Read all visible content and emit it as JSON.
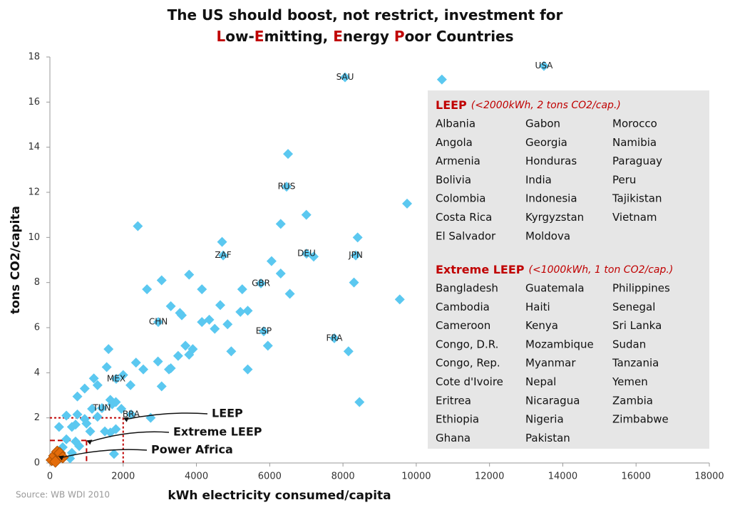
{
  "chart_data": {
    "type": "scatter",
    "title_lines": [
      [
        {
          "text": "The US should boost, not restrict, investment for",
          "color": "#111111"
        }
      ],
      [
        {
          "text": "L",
          "color": "#c00000"
        },
        {
          "text": "ow-",
          "color": "#111111"
        },
        {
          "text": "E",
          "color": "#c00000"
        },
        {
          "text": "mitting, ",
          "color": "#111111"
        },
        {
          "text": "E",
          "color": "#c00000"
        },
        {
          "text": "nergy ",
          "color": "#111111"
        },
        {
          "text": "P",
          "color": "#c00000"
        },
        {
          "text": "oor Countries",
          "color": "#111111"
        }
      ]
    ],
    "xlabel": "kWh electricity consumed/capita",
    "ylabel": "tons CO2/capita",
    "source": "Source: WB WDI 2010",
    "xlim": [
      0,
      18000
    ],
    "ylim": [
      0,
      18
    ],
    "xticks": [
      0,
      2000,
      4000,
      6000,
      8000,
      10000,
      12000,
      14000,
      16000,
      18000
    ],
    "yticks": [
      0,
      2,
      4,
      6,
      8,
      10,
      12,
      14,
      16,
      18
    ],
    "grid": false,
    "series": [
      {
        "color": "#5bc8f0",
        "x": [
          13485,
          8056,
          6460,
          4729,
          7005,
          8348,
          5760,
          2958,
          5837,
          7764,
          1810,
          1420,
          2218,
          10700,
          6500,
          9750,
          7000,
          2400,
          6300,
          8400,
          4700,
          7200,
          6050,
          3800,
          6300,
          3050,
          8300,
          2650,
          4150,
          5250,
          6550,
          9550,
          3300,
          4650,
          3550,
          3600,
          5200,
          5400,
          4150,
          4350,
          4500,
          4850,
          1600,
          3700,
          5950,
          3900,
          8150,
          4950,
          3500,
          3800,
          2350,
          2950,
          1550,
          3300,
          5400,
          3250,
          2550,
          1200,
          2000,
          2200,
          3050,
          950,
          1300,
          750,
          1650,
          1800,
          8450,
          1700,
          1150,
          750,
          1300,
          450,
          1950,
          2750,
          950,
          1000,
          250,
          600,
          700,
          1500,
          1650,
          1800,
          1100,
          450,
          700,
          800,
          350,
          1750,
          600,
          550
        ],
        "values": [
          17.6,
          17.1,
          12.25,
          9.2,
          9.28,
          9.2,
          7.96,
          6.25,
          5.84,
          5.53,
          3.73,
          2.43,
          2.15,
          17.0,
          13.7,
          11.5,
          11.0,
          10.5,
          10.6,
          10.0,
          9.8,
          9.15,
          8.95,
          8.35,
          8.4,
          8.1,
          8.0,
          7.7,
          7.7,
          7.7,
          7.5,
          7.25,
          6.95,
          7.0,
          6.65,
          6.55,
          6.7,
          6.75,
          6.25,
          6.35,
          5.95,
          6.15,
          5.05,
          5.2,
          5.2,
          5.05,
          4.95,
          4.95,
          4.75,
          4.8,
          4.45,
          4.5,
          4.25,
          4.2,
          4.15,
          4.15,
          4.15,
          3.75,
          3.9,
          3.45,
          3.4,
          3.3,
          3.45,
          2.95,
          2.8,
          2.7,
          2.7,
          2.6,
          2.4,
          2.15,
          2.05,
          2.1,
          2.4,
          2.0,
          1.95,
          1.75,
          1.6,
          1.6,
          1.7,
          1.4,
          1.35,
          1.5,
          1.4,
          1.05,
          0.95,
          0.75,
          0.7,
          0.4,
          0.45,
          0.2
        ],
        "labels": [
          "USA",
          "SAU",
          "RUS",
          "ZAF",
          "DEU",
          "JPN",
          "GBR",
          "CHN",
          "ESP",
          "FRA",
          "MEX",
          "TUN",
          "BRA",
          null,
          null,
          null,
          null,
          null,
          null,
          null,
          null,
          null,
          null,
          null,
          null,
          null,
          null,
          null,
          null,
          null,
          null,
          null,
          null,
          null,
          null,
          null,
          null,
          null,
          null,
          null,
          null,
          null,
          null,
          null,
          null,
          null,
          null,
          null,
          null,
          null,
          null,
          null,
          null,
          null,
          null,
          null,
          null,
          null,
          null,
          null,
          null,
          null,
          null,
          null,
          null,
          null,
          null,
          null,
          null,
          null,
          null,
          null,
          null,
          null,
          null,
          null,
          null,
          null,
          null,
          null,
          null,
          null,
          null,
          null,
          null,
          null,
          null,
          null,
          null,
          null
        ]
      },
      {
        "color": "#e46c0a",
        "x": [
          50,
          120,
          200,
          270,
          350,
          150
        ],
        "values": [
          0.13,
          0.32,
          0.5,
          0.44,
          0.25,
          0.06
        ],
        "labels": [
          null,
          null,
          null,
          null,
          null,
          null
        ]
      }
    ],
    "reference_lines": [
      {
        "x": 2000,
        "y": 2,
        "color": "#c00000",
        "style": "dotted"
      },
      {
        "x": 1000,
        "y": 1,
        "color": "#c00000",
        "style": "dashed"
      }
    ],
    "annotations": [
      {
        "text": "LEEP",
        "color": "#c00000"
      },
      {
        "text": "Extreme LEEP",
        "color": "#c00000"
      },
      {
        "text": "Power Africa",
        "color": "#e46c0a",
        "x": 230,
        "y": 0.3
      }
    ],
    "panel": {
      "sections": [
        {
          "title": "LEEP",
          "subtitle": "(<2000kWh, 2 tons CO2/cap.)",
          "color": "#c00000",
          "columns": [
            [
              "Albania",
              "Angola",
              "Armenia",
              "Bolivia",
              "Colombia",
              "Costa Rica",
              "El Salvador"
            ],
            [
              "Gabon",
              "Georgia",
              "Honduras",
              "India",
              "Indonesia",
              "Kyrgyzstan",
              "Moldova"
            ],
            [
              "Morocco",
              "Namibia",
              "Paraguay",
              "Peru",
              "Tajikistan",
              "Vietnam"
            ]
          ]
        },
        {
          "title": "Extreme LEEP",
          "subtitle": "(<1000kWh, 1 ton CO2/cap.)",
          "color": "#c00000",
          "columns": [
            [
              "Bangladesh",
              "Cambodia",
              "Cameroon",
              "Congo, D.R.",
              "Congo, Rep.",
              "Cote d'Ivoire",
              "Eritrea",
              "Ethiopia",
              "Ghana"
            ],
            [
              "Guatemala",
              "Haiti",
              "Kenya",
              "Mozambique",
              "Myanmar",
              "Nepal",
              "Nicaragua",
              "Nigeria",
              "Pakistan"
            ],
            [
              "Philippines",
              "Senegal",
              "Sri Lanka",
              "Sudan",
              "Tanzania",
              "Yemen",
              "Zambia",
              "Zimbabwe"
            ]
          ]
        }
      ]
    }
  }
}
